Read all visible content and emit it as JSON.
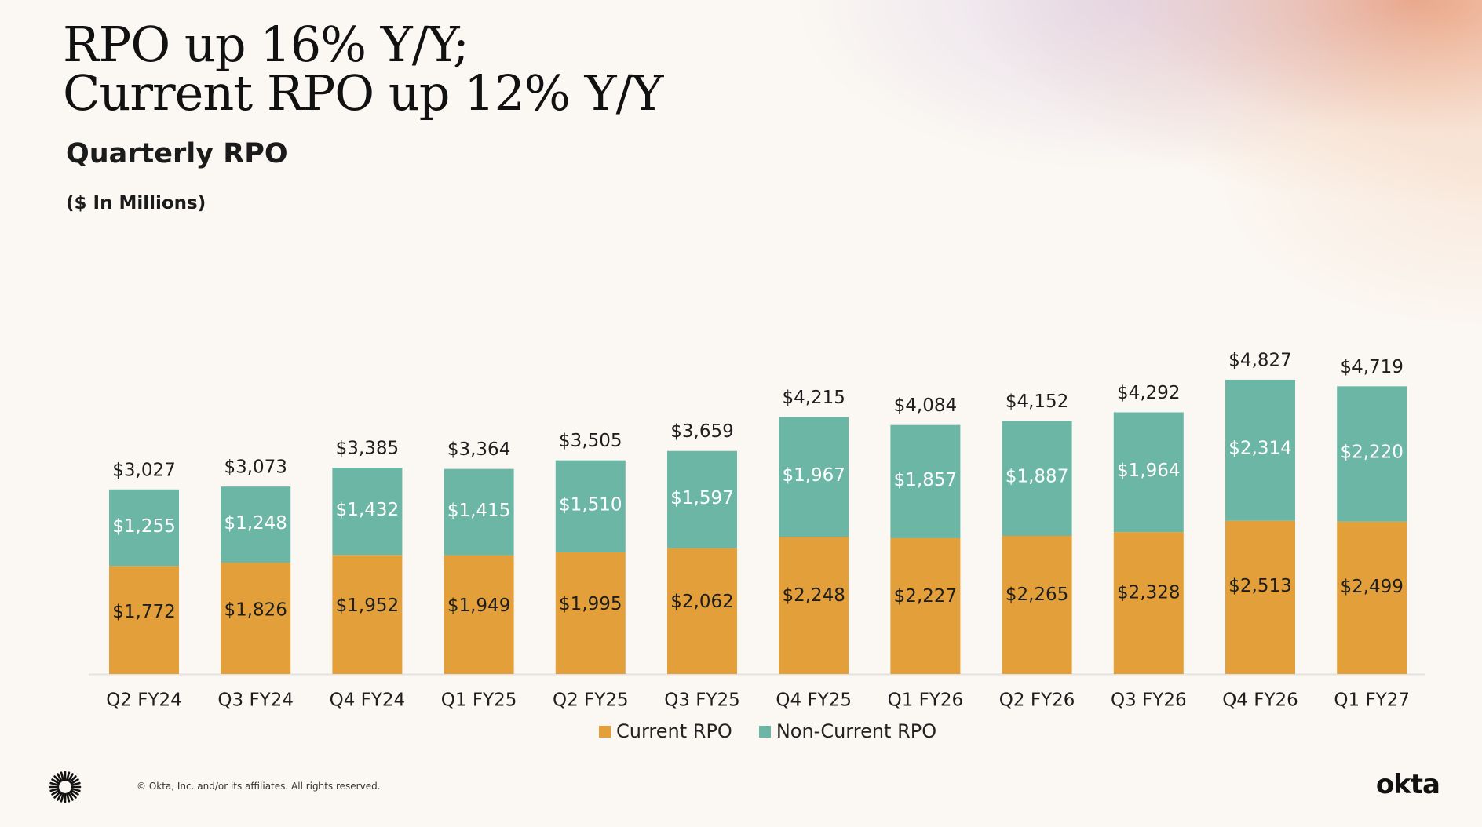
{
  "slide": {
    "title_line1": "RPO up 16% Y/Y;",
    "title_line2": "Current RPO up 12% Y/Y",
    "copyright": "© Okta, Inc. and/or its affiliates. All rights reserved.",
    "brand": "okta"
  },
  "colors": {
    "current": "#e3a03a",
    "non_current": "#6cb6a6",
    "background": "#fbf8f3",
    "axis": "#e2e2e2"
  },
  "chart_data": {
    "type": "bar",
    "stacked": true,
    "title": "Quarterly RPO",
    "subtitle": "($ In Millions)",
    "categories": [
      "Q2 FY24",
      "Q3 FY24",
      "Q4 FY24",
      "Q1 FY25",
      "Q2 FY25",
      "Q3 FY25",
      "Q4 FY25",
      "Q1 FY26",
      "Q2 FY26",
      "Q3 FY26",
      "Q4 FY26",
      "Q1 FY27"
    ],
    "series": [
      {
        "name": "Current RPO",
        "values": [
          1772,
          1826,
          1952,
          1949,
          1995,
          2062,
          2248,
          2227,
          2265,
          2328,
          2513,
          2499
        ],
        "labels": [
          "$1,772",
          "$1,826",
          "$1,952",
          "$1,949",
          "$1,995",
          "$2,062",
          "$2,248",
          "$2,227",
          "$2,265",
          "$2,328",
          "$2,513",
          "$2,499"
        ]
      },
      {
        "name": "Non-Current RPO",
        "values": [
          1255,
          1248,
          1432,
          1415,
          1510,
          1597,
          1967,
          1857,
          1887,
          1964,
          2314,
          2220
        ],
        "labels": [
          "$1,255",
          "$1,248",
          "$1,432",
          "$1,415",
          "$1,510",
          "$1,597",
          "$1,967",
          "$1,857",
          "$1,887",
          "$1,964",
          "$2,314",
          "$2,220"
        ]
      }
    ],
    "totals": [
      3027,
      3073,
      3385,
      3364,
      3505,
      3659,
      4215,
      4084,
      4152,
      4292,
      4827,
      4719
    ],
    "total_labels": [
      "$3,027",
      "$3,073",
      "$3,385",
      "$3,364",
      "$3,505",
      "$3,659",
      "$4,215",
      "$4,084",
      "$4,152",
      "$4,292",
      "$4,827",
      "$4,719"
    ],
    "ylim": [
      0,
      6000
    ],
    "grid": false,
    "legend_position": "bottom-center"
  }
}
